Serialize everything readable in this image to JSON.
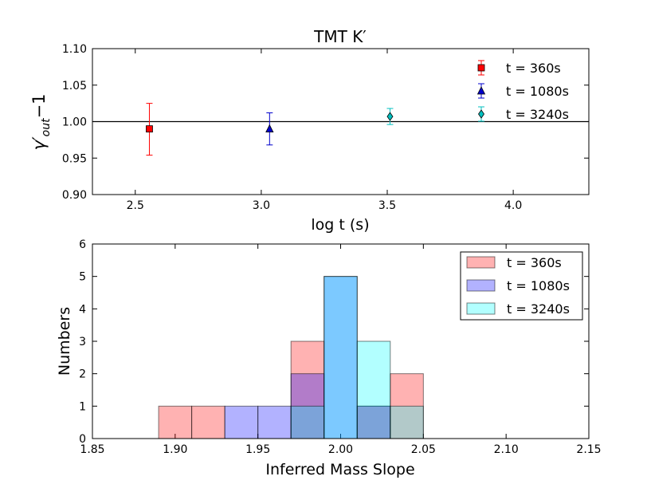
{
  "chart_data": [
    {
      "type": "scatter",
      "title": "TMT K′",
      "xlabel": "log t (s)",
      "ylabel_main": "γ′",
      "ylabel_sub": "out",
      "ylabel_suffix": "−1",
      "xlim": [
        2.33,
        4.3
      ],
      "ylim": [
        0.9,
        1.1
      ],
      "xticks": [
        2.5,
        3.0,
        3.5,
        4.0
      ],
      "xtick_labels": [
        "2.5",
        "3.0",
        "3.5",
        "4.0"
      ],
      "yticks": [
        0.9,
        0.95,
        1.0,
        1.05,
        1.1
      ],
      "ytick_labels": [
        "0.90",
        "0.95",
        "1.00",
        "1.05",
        "1.10"
      ],
      "reference_line": 1.0,
      "legend_position": "top-right",
      "series": [
        {
          "name": "t = 360s",
          "x": 2.556,
          "y": 0.99,
          "err_low": 0.954,
          "err_high": 1.025,
          "color": "#ff0000",
          "marker": "square"
        },
        {
          "name": "t = 1080s",
          "x": 3.033,
          "y": 0.99,
          "err_low": 0.968,
          "err_high": 1.012,
          "color": "#0000cc",
          "marker": "triangle"
        },
        {
          "name": "t = 3240s",
          "x": 3.511,
          "y": 1.007,
          "err_low": 0.996,
          "err_high": 1.018,
          "color": "#00bfbf",
          "marker": "diamond"
        }
      ]
    },
    {
      "type": "bar",
      "subtype": "histogram",
      "xlabel": "Inferred Mass Slope",
      "ylabel": "Numbers",
      "xlim": [
        1.85,
        2.15
      ],
      "ylim": [
        0,
        6
      ],
      "xticks": [
        1.85,
        1.9,
        1.95,
        2.0,
        2.05,
        2.1,
        2.15
      ],
      "xtick_labels": [
        "1.85",
        "1.90",
        "1.95",
        "2.00",
        "2.05",
        "2.10",
        "2.15"
      ],
      "yticks": [
        0,
        1,
        2,
        3,
        4,
        5,
        6
      ],
      "ytick_labels": [
        "0",
        "1",
        "2",
        "3",
        "4",
        "5",
        "6"
      ],
      "bin_edges": [
        1.89,
        1.91,
        1.93,
        1.95,
        1.97,
        1.99,
        2.01,
        2.03,
        2.05
      ],
      "legend_position": "top-right",
      "series": [
        {
          "name": "t = 360s",
          "values": [
            1,
            1,
            0,
            0,
            3,
            0,
            1,
            2
          ],
          "color": "#ff0000"
        },
        {
          "name": "t = 1080s",
          "values": [
            0,
            0,
            1,
            1,
            2,
            5,
            1,
            0
          ],
          "color": "#0000ff"
        },
        {
          "name": "t = 3240s",
          "values": [
            0,
            0,
            0,
            0,
            1,
            5,
            3,
            1
          ],
          "color": "#00ffff"
        }
      ]
    }
  ]
}
